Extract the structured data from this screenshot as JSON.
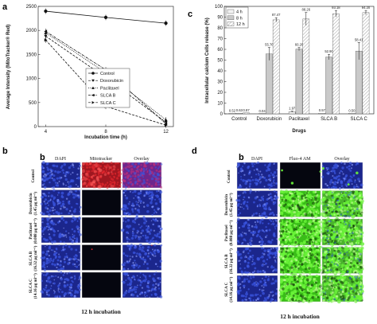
{
  "panels": {
    "a": {
      "label": "a"
    },
    "b": {
      "label": "b",
      "inner_label": "b"
    },
    "c": {
      "label": "c"
    },
    "d": {
      "label": "d",
      "inner_label": "b"
    }
  },
  "chart_data": [
    {
      "id": "a",
      "type": "line",
      "xlabel": "Incubation time (h)",
      "ylabel": "Average Intensity (MitoTracker® Red)",
      "x": [
        4,
        8,
        12
      ],
      "xticks": [
        4,
        8,
        12
      ],
      "xlim": [
        3.5,
        12.5
      ],
      "ylim": [
        0,
        2500
      ],
      "yticks": [
        0,
        500,
        1000,
        1500,
        2000,
        2500
      ],
      "legend_position": "center-right",
      "series": [
        {
          "name": "Control",
          "marker": "circle",
          "dash": "solid",
          "values": [
            2400,
            2270,
            2150
          ]
        },
        {
          "name": "Doxorubicin",
          "marker": "triangle-down",
          "dash": "dash",
          "values": [
            1880,
            1020,
            90
          ]
        },
        {
          "name": "Paclitaxel",
          "marker": "triangle-up",
          "dash": "dot",
          "values": [
            1950,
            1120,
            140
          ]
        },
        {
          "name": "SLCA_B",
          "marker": "triangle-left",
          "dash": "dashdot",
          "values": [
            1980,
            1180,
            60
          ]
        },
        {
          "name": "SLCA_C",
          "marker": "triangle-right",
          "dash": "dash",
          "values": [
            1800,
            420,
            30
          ]
        }
      ],
      "error_bars": true
    },
    {
      "id": "c",
      "type": "bar",
      "xlabel": "Drugs",
      "ylabel": "Intracellular calcium Cells release (%)",
      "categories": [
        "Control",
        "Doxorubicin",
        "Paclitaxel",
        "SLCA_B",
        "SLCA_C"
      ],
      "ylim": [
        0,
        100
      ],
      "yticks": [
        0,
        10,
        20,
        30,
        40,
        50,
        60,
        70,
        80,
        90,
        100
      ],
      "legend_position": "top-left",
      "series": [
        {
          "name": "4 h",
          "values": [
            0.52,
            0.04,
            1.97,
            0.57,
            0.5
          ],
          "labels": [
            "0.52",
            "0.04",
            "1.97",
            "0.57",
            "0.50"
          ],
          "errors": [
            0,
            0,
            0.5,
            0,
            0
          ]
        },
        {
          "name": "8 h",
          "values": [
            0.63,
            55.76,
            60.26,
            52.9,
            58.41
          ],
          "labels": [
            "0.63",
            "55.76",
            "60.26",
            "52.90",
            "58.41"
          ],
          "errors": [
            0,
            6,
            1.5,
            2.5,
            8
          ]
        },
        {
          "name": "12 h",
          "values": [
            0.87,
            87.47,
            88.26,
            93.18,
            94.2
          ],
          "labels": [
            "0.87",
            "87.47",
            "88.26",
            "93.18",
            "94.20"
          ],
          "errors": [
            0,
            2,
            6,
            3,
            2
          ]
        }
      ]
    }
  ],
  "panel_b": {
    "columns": [
      "DAPI",
      "Mitotracker",
      "Overlay"
    ],
    "rows": [
      [
        "Control"
      ],
      [
        "Doxorubicin",
        "(1.45 μg ml⁻¹)"
      ],
      [
        "Paclitaxel",
        "(0.088 μg ml⁻¹)"
      ],
      [
        "SLCA_B",
        "(16.32 μg ml⁻¹)"
      ],
      [
        "SLCA_C",
        "(14.16 μg ml⁻¹)"
      ]
    ],
    "caption": "12 h incubation"
  },
  "panel_d": {
    "columns": [
      "DAPI",
      "Fluo-4 AM",
      "Overlay"
    ],
    "rows": [
      [
        "Control"
      ],
      [
        "Doxorubicin",
        "(1.45 μg ml⁻¹)"
      ],
      [
        "Paclitaxel",
        "(0.088 μg ml⁻¹)"
      ],
      [
        "SLCA_B",
        "(16.32 μg ml⁻¹)"
      ],
      [
        "SLCA_C",
        "(14.16 μg ml⁻¹)"
      ]
    ],
    "caption": "12 h incubation"
  },
  "colors": {
    "dapi": "#1e2a9a",
    "mito": "#b01a22",
    "overlay_red": "#7a2a9a",
    "fluo": "#3fd21a",
    "fluo_overlay": "#52c830"
  }
}
